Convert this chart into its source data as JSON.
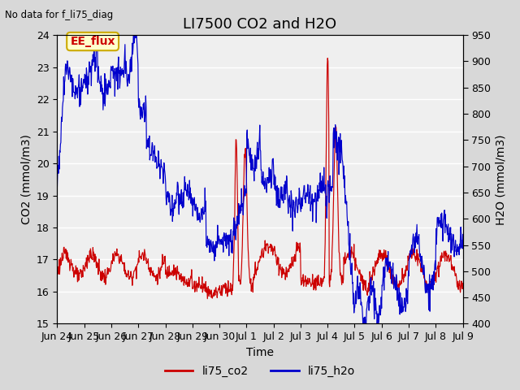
{
  "title": "LI7500 CO2 and H2O",
  "top_left_text": "No data for f_li75_diag",
  "xlabel": "Time",
  "ylabel_left": "CO2 (mmol/m3)",
  "ylabel_right": "H2O (mmol/m3)",
  "ylim_left": [
    15.0,
    24.0
  ],
  "ylim_right": [
    400,
    950
  ],
  "legend_labels": [
    "li75_co2",
    "li75_h2o"
  ],
  "co2_color": "#cc0000",
  "h2o_color": "#0000cc",
  "fig_bg_color": "#d8d8d8",
  "plot_bg_color": "#efefef",
  "EE_flux_label": "EE_flux",
  "EE_flux_text_color": "#cc0000",
  "EE_flux_bg": "#ffffcc",
  "EE_flux_edge": "#ccaa00",
  "title_fontsize": 13,
  "label_fontsize": 10,
  "tick_fontsize": 9,
  "x_tick_labels": [
    "Jun 24",
    "Jun 25",
    "Jun 26",
    "Jun 27",
    "Jun 28",
    "Jun 29",
    "Jun 30",
    "Jul 1",
    "Jul 2",
    "Jul 3",
    "Jul 4",
    "Jul 5",
    "Jul 6",
    "Jul 7",
    "Jul 8",
    "Jul 9"
  ],
  "x_tick_positions": [
    0,
    1,
    2,
    3,
    4,
    5,
    6,
    7,
    8,
    9,
    10,
    11,
    12,
    13,
    14,
    15
  ],
  "yticks_left": [
    15.0,
    16.0,
    17.0,
    18.0,
    19.0,
    20.0,
    21.0,
    22.0,
    23.0,
    24.0
  ],
  "yticks_right": [
    400,
    450,
    500,
    550,
    600,
    650,
    700,
    750,
    800,
    850,
    900,
    950
  ]
}
